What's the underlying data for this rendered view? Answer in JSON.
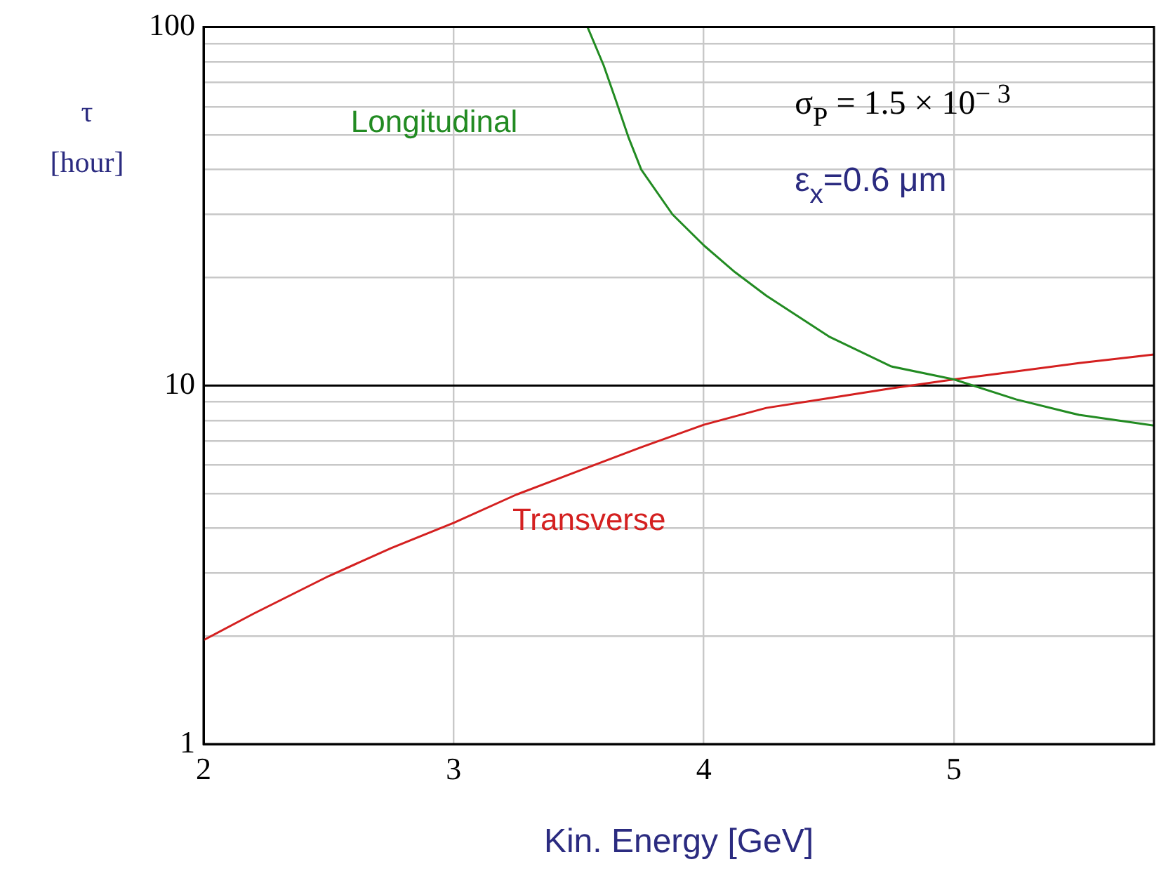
{
  "chart_data": {
    "type": "line",
    "xlabel": "Kin. Energy [GeV]",
    "ylabel": "τ [hour]",
    "log": "y",
    "grid": true,
    "legend": false,
    "marker": "none",
    "line_style": "solid",
    "xlim": [
      2,
      5.8
    ],
    "xticks": [
      2,
      3,
      4,
      5
    ],
    "ylim": [
      1,
      100
    ],
    "yticks": [
      1,
      {
        "value": 2,
        "label": null
      },
      {
        "value": 3,
        "label": null
      },
      {
        "value": 4,
        "label": null
      },
      {
        "value": 5,
        "label": null
      },
      {
        "value": 6,
        "label": null
      },
      {
        "value": 7,
        "label": null
      },
      {
        "value": 8,
        "label": null
      },
      {
        "value": 9,
        "label": null
      },
      10,
      {
        "value": 20,
        "label": null
      },
      {
        "value": 30,
        "label": null
      },
      {
        "value": 40,
        "label": null
      },
      {
        "value": 50,
        "label": null
      },
      {
        "value": 60,
        "label": null
      },
      {
        "value": 70,
        "label": null
      },
      {
        "value": 80,
        "label": null
      },
      {
        "value": 90,
        "label": null
      },
      100
    ],
    "ref_lines": [
      {
        "axis": "y",
        "value": 10,
        "color": "#000000"
      }
    ],
    "annotations": [
      "σ$_{P}$ = 1.5 × 10$^{− 3}$",
      "ε$_{x}$=0.6 μm"
    ],
    "series": [
      {
        "name": "Longitudinal",
        "color": "#228b22",
        "x": [
          3.535,
          3.6,
          3.65,
          3.7,
          3.75,
          3.875,
          4,
          4.125,
          4.25,
          4.5,
          4.75,
          5,
          5.25,
          5.5,
          5.8
        ],
        "values": [
          100,
          78,
          62,
          49,
          40,
          30,
          24.6,
          20.7,
          17.8,
          13.7,
          11.3,
          10.4,
          9.14,
          8.28,
          7.73
        ]
      },
      {
        "name": "Transverse",
        "color": "#d42020",
        "x": [
          2,
          2.2,
          2.5,
          2.75,
          3,
          3.25,
          3.5,
          3.75,
          4,
          4.25,
          4.5,
          4.75,
          5,
          5.25,
          5.5,
          5.8
        ],
        "values": [
          1.95,
          2.31,
          2.94,
          3.52,
          4.14,
          4.96,
          5.78,
          6.73,
          7.77,
          8.66,
          9.22,
          9.82,
          10.4,
          10.95,
          11.55,
          12.2
        ]
      }
    ]
  }
}
